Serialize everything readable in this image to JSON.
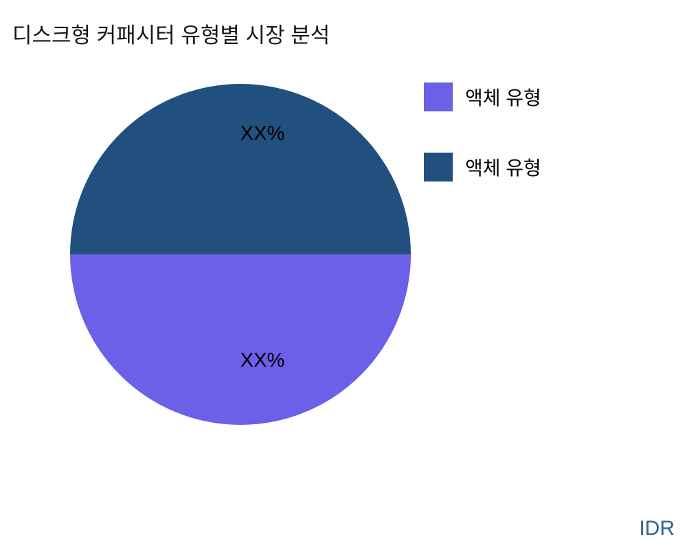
{
  "page": {
    "title": "디스크형 커패시터 유형별 시장 분석",
    "watermark": "IDR"
  },
  "colors": {
    "slice_bottom": "#6c5fe8",
    "slice_top": "#21507e",
    "watermark_text": "#33608e",
    "title_text": "#161616",
    "label_text": "#000000"
  },
  "chart_data": {
    "type": "pie",
    "title": "디스크형 커패시터 유형별 시장 분석",
    "slices": [
      {
        "label": "액체 유형",
        "value": 50,
        "value_label": "XX%",
        "color": "#6c5fe8",
        "position": "bottom-half"
      },
      {
        "label": "액체 유형",
        "value": 50,
        "value_label": "XX%",
        "color": "#21507e",
        "position": "top-half"
      }
    ],
    "legend": {
      "position": "right",
      "entries": [
        {
          "label": "액체 유형",
          "color": "#6c5fe8"
        },
        {
          "label": "액체 유형",
          "color": "#21507e"
        }
      ]
    },
    "annotations": [
      "XX%",
      "XX%"
    ],
    "grid": false
  }
}
